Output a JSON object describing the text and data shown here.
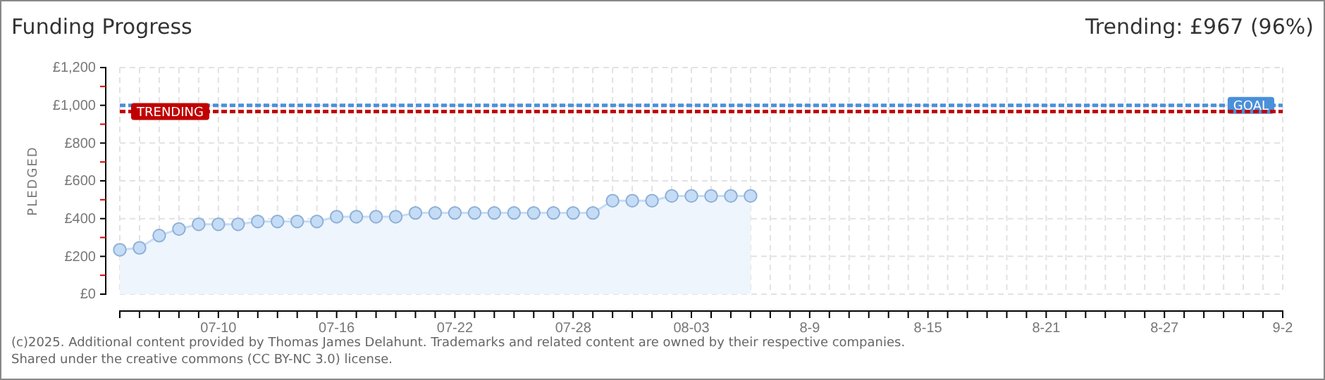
{
  "chart_data": {
    "type": "area",
    "title": "Funding Progress",
    "subtitle": "Trending: £967 (96%)",
    "ylabel": "PLEDGED",
    "x": [
      "2025-07-05",
      "2025-07-06",
      "2025-07-07",
      "2025-07-08",
      "2025-07-09",
      "2025-07-10",
      "2025-07-11",
      "2025-07-12",
      "2025-07-13",
      "2025-07-14",
      "2025-07-15",
      "2025-07-16",
      "2025-07-17",
      "2025-07-18",
      "2025-07-19",
      "2025-07-20",
      "2025-07-21",
      "2025-07-22",
      "2025-07-23",
      "2025-07-24",
      "2025-07-25",
      "2025-07-26",
      "2025-07-27",
      "2025-07-28",
      "2025-07-29",
      "2025-07-30",
      "2025-07-31",
      "2025-08-01",
      "2025-08-02",
      "2025-08-03",
      "2025-08-04",
      "2025-08-05",
      "2025-08-06"
    ],
    "series": [
      {
        "color": "#c4dcf5",
        "values": [
          235,
          245,
          310,
          345,
          370,
          370,
          370,
          385,
          385,
          385,
          385,
          410,
          410,
          410,
          410,
          430,
          430,
          430,
          430,
          430,
          430,
          430,
          430,
          430,
          430,
          495,
          495,
          495,
          520,
          520,
          520,
          520,
          520
        ]
      }
    ],
    "marker": "circle",
    "grid": true,
    "xlim": [
      "2025-07-05",
      "2025-09-02"
    ],
    "xticks": [
      {
        "value": "2025-07-05",
        "label": null
      },
      {
        "value": "2025-07-06",
        "label": null
      },
      {
        "value": "2025-07-07",
        "label": null
      },
      {
        "value": "2025-07-08",
        "label": null
      },
      {
        "value": "2025-07-09",
        "label": null
      },
      {
        "value": "2025-07-10",
        "label": "07-10"
      },
      {
        "value": "2025-07-11",
        "label": null
      },
      {
        "value": "2025-07-12",
        "label": null
      },
      {
        "value": "2025-07-13",
        "label": null
      },
      {
        "value": "2025-07-14",
        "label": null
      },
      {
        "value": "2025-07-15",
        "label": null
      },
      {
        "value": "2025-07-16",
        "label": "07-16"
      },
      {
        "value": "2025-07-17",
        "label": null
      },
      {
        "value": "2025-07-18",
        "label": null
      },
      {
        "value": "2025-07-19",
        "label": null
      },
      {
        "value": "2025-07-20",
        "label": null
      },
      {
        "value": "2025-07-21",
        "label": null
      },
      {
        "value": "2025-07-22",
        "label": "07-22"
      },
      {
        "value": "2025-07-23",
        "label": null
      },
      {
        "value": "2025-07-24",
        "label": null
      },
      {
        "value": "2025-07-25",
        "label": null
      },
      {
        "value": "2025-07-26",
        "label": null
      },
      {
        "value": "2025-07-27",
        "label": null
      },
      {
        "value": "2025-07-28",
        "label": "07-28"
      },
      {
        "value": "2025-07-29",
        "label": null
      },
      {
        "value": "2025-07-30",
        "label": null
      },
      {
        "value": "2025-07-31",
        "label": null
      },
      {
        "value": "2025-08-01",
        "label": null
      },
      {
        "value": "2025-08-02",
        "label": null
      },
      {
        "value": "2025-08-03",
        "label": "08-03"
      },
      {
        "value": "2025-08-04",
        "label": null
      },
      {
        "value": "2025-08-05",
        "label": null
      },
      {
        "value": "2025-08-06",
        "label": null
      },
      {
        "value": "2025-08-07",
        "label": null
      },
      {
        "value": "2025-08-08",
        "label": null
      },
      {
        "value": "2025-08-09",
        "label": "8-9"
      },
      {
        "value": "2025-08-10",
        "label": null
      },
      {
        "value": "2025-08-11",
        "label": null
      },
      {
        "value": "2025-08-12",
        "label": null
      },
      {
        "value": "2025-08-13",
        "label": null
      },
      {
        "value": "2025-08-14",
        "label": null
      },
      {
        "value": "2025-08-15",
        "label": "8-15"
      },
      {
        "value": "2025-08-16",
        "label": null
      },
      {
        "value": "2025-08-17",
        "label": null
      },
      {
        "value": "2025-08-18",
        "label": null
      },
      {
        "value": "2025-08-19",
        "label": null
      },
      {
        "value": "2025-08-20",
        "label": null
      },
      {
        "value": "2025-08-21",
        "label": "8-21"
      },
      {
        "value": "2025-08-22",
        "label": null
      },
      {
        "value": "2025-08-23",
        "label": null
      },
      {
        "value": "2025-08-24",
        "label": null
      },
      {
        "value": "2025-08-25",
        "label": null
      },
      {
        "value": "2025-08-26",
        "label": null
      },
      {
        "value": "2025-08-27",
        "label": "8-27"
      },
      {
        "value": "2025-08-28",
        "label": null
      },
      {
        "value": "2025-08-29",
        "label": null
      },
      {
        "value": "2025-08-30",
        "label": null
      },
      {
        "value": "2025-08-31",
        "label": null
      },
      {
        "value": "2025-09-01",
        "label": null
      },
      {
        "value": "2025-09-02",
        "label": "9-2"
      }
    ],
    "ylim": [
      0,
      1200
    ],
    "yticks": [
      {
        "value": 0,
        "label": "£0"
      },
      {
        "value": 100,
        "label": null
      },
      {
        "value": 200,
        "label": "£200"
      },
      {
        "value": 300,
        "label": null
      },
      {
        "value": 400,
        "label": "£400"
      },
      {
        "value": 500,
        "label": null
      },
      {
        "value": 600,
        "label": "£600"
      },
      {
        "value": 700,
        "label": null
      },
      {
        "value": 800,
        "label": "£800"
      },
      {
        "value": 900,
        "label": null
      },
      {
        "value": 1000,
        "label": "£1,000"
      },
      {
        "value": 1100,
        "label": null
      },
      {
        "value": 1200,
        "label": "£1,200"
      }
    ],
    "ref_lines": [
      {
        "axis": "y",
        "value": 1000,
        "label": "GOAL",
        "color": "#4a90d9",
        "line_style": "dashed"
      },
      {
        "axis": "y",
        "value": 967,
        "label": "TRENDING",
        "color": "#c00000",
        "line_style": "dashed"
      }
    ],
    "annotations": [
      "(c)2025. Additional content provided by Thomas James Delahunt. Trademarks and related content are owned by their respective companies.",
      "Shared under the creative commons (CC BY-NC 3.0) license."
    ]
  }
}
